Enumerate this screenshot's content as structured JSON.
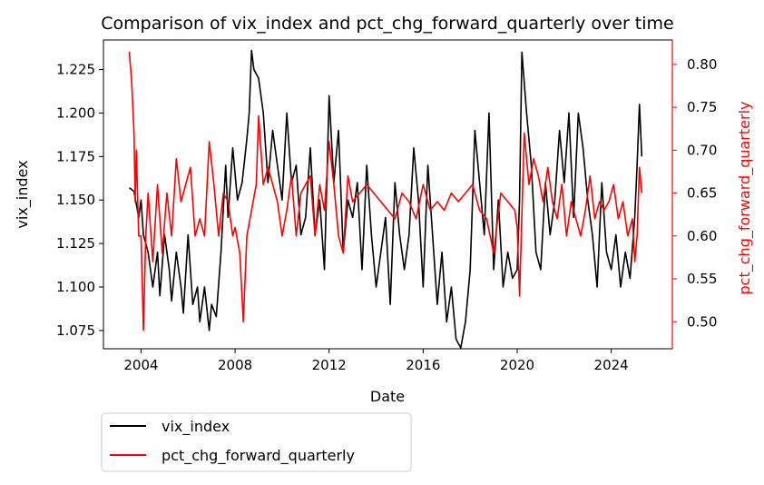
{
  "chart_data": {
    "type": "line",
    "title": "Comparison of vix_index and pct_chg_forward_quarterly over time",
    "xlabel": "Date",
    "ylabel_left": "vix_index",
    "ylabel_right": "pct_chg_forward_quarterly",
    "xlim": [
      2002.4,
      2026.6
    ],
    "ylim_left": [
      1.0645,
      1.242
    ],
    "ylim_right": [
      0.4685,
      0.8285
    ],
    "xticks": [
      2004,
      2008,
      2012,
      2016,
      2020,
      2024
    ],
    "yticks_left": [
      1.075,
      1.1,
      1.125,
      1.15,
      1.175,
      1.2,
      1.225
    ],
    "yticks_right": [
      0.5,
      0.55,
      0.6,
      0.65,
      0.7,
      0.75,
      0.8
    ],
    "grid": false,
    "legend_position": "below-left",
    "series": [
      {
        "name": "vix_index",
        "axis": "left",
        "color": "#000000",
        "x": [
          2003.5,
          2003.7,
          2003.9,
          2004.0,
          2004.1,
          2004.3,
          2004.5,
          2004.7,
          2004.8,
          2005.0,
          2005.2,
          2005.3,
          2005.5,
          2005.7,
          2005.8,
          2006.0,
          2006.2,
          2006.4,
          2006.5,
          2006.7,
          2006.9,
          2007.0,
          2007.2,
          2007.4,
          2007.6,
          2007.7,
          2007.9,
          2008.1,
          2008.3,
          2008.5,
          2008.6,
          2008.7,
          2008.8,
          2009.0,
          2009.2,
          2009.4,
          2009.6,
          2009.8,
          2010.0,
          2010.2,
          2010.4,
          2010.6,
          2010.8,
          2011.0,
          2011.2,
          2011.4,
          2011.6,
          2011.8,
          2012.0,
          2012.2,
          2012.4,
          2012.6,
          2012.8,
          2013.0,
          2013.2,
          2013.4,
          2013.6,
          2013.8,
          2014.0,
          2014.2,
          2014.4,
          2014.6,
          2014.8,
          2015.0,
          2015.2,
          2015.4,
          2015.6,
          2015.8,
          2016.0,
          2016.2,
          2016.4,
          2016.6,
          2016.8,
          2017.0,
          2017.2,
          2017.4,
          2017.6,
          2017.8,
          2018.0,
          2018.2,
          2018.4,
          2018.6,
          2018.8,
          2019.0,
          2019.2,
          2019.4,
          2019.6,
          2019.8,
          2020.0,
          2020.1,
          2020.2,
          2020.4,
          2020.6,
          2020.8,
          2021.0,
          2021.2,
          2021.4,
          2021.6,
          2021.8,
          2022.0,
          2022.2,
          2022.4,
          2022.6,
          2022.8,
          2023.0,
          2023.2,
          2023.4,
          2023.6,
          2023.8,
          2024.0,
          2024.2,
          2024.4,
          2024.6,
          2024.8,
          2025.0,
          2025.1,
          2025.2,
          2025.3
        ],
        "values": [
          1.157,
          1.155,
          1.14,
          1.15,
          1.13,
          1.12,
          1.1,
          1.12,
          1.095,
          1.13,
          1.11,
          1.092,
          1.12,
          1.1,
          1.085,
          1.13,
          1.09,
          1.1,
          1.08,
          1.1,
          1.075,
          1.09,
          1.083,
          1.12,
          1.17,
          1.14,
          1.18,
          1.15,
          1.16,
          1.185,
          1.2,
          1.236,
          1.225,
          1.22,
          1.2,
          1.16,
          1.19,
          1.17,
          1.15,
          1.2,
          1.16,
          1.17,
          1.13,
          1.14,
          1.18,
          1.13,
          1.15,
          1.11,
          1.21,
          1.16,
          1.19,
          1.12,
          1.15,
          1.14,
          1.16,
          1.11,
          1.17,
          1.13,
          1.1,
          1.12,
          1.14,
          1.09,
          1.16,
          1.13,
          1.11,
          1.13,
          1.18,
          1.15,
          1.1,
          1.17,
          1.13,
          1.09,
          1.12,
          1.08,
          1.1,
          1.07,
          1.065,
          1.08,
          1.11,
          1.19,
          1.16,
          1.13,
          1.2,
          1.11,
          1.15,
          1.1,
          1.12,
          1.105,
          1.11,
          1.15,
          1.235,
          1.2,
          1.17,
          1.12,
          1.11,
          1.16,
          1.13,
          1.15,
          1.19,
          1.16,
          1.2,
          1.14,
          1.2,
          1.18,
          1.15,
          1.13,
          1.1,
          1.16,
          1.12,
          1.11,
          1.13,
          1.1,
          1.12,
          1.105,
          1.14,
          1.17,
          1.205,
          1.175
        ]
      },
      {
        "name": "pct_chg_forward_quarterly",
        "axis": "right",
        "color": "#ff0000",
        "x": [
          2003.5,
          2003.6,
          2003.7,
          2003.75,
          2003.8,
          2003.9,
          2004.0,
          2004.1,
          2004.2,
          2004.3,
          2004.5,
          2004.7,
          2004.9,
          2005.1,
          2005.3,
          2005.5,
          2005.7,
          2005.9,
          2006.1,
          2006.3,
          2006.5,
          2006.7,
          2006.9,
          2007.1,
          2007.3,
          2007.5,
          2007.7,
          2007.9,
          2008.0,
          2008.2,
          2008.35,
          2008.5,
          2008.7,
          2008.9,
          2009.0,
          2009.2,
          2009.4,
          2009.6,
          2009.8,
          2010.0,
          2010.2,
          2010.4,
          2010.6,
          2010.8,
          2011.0,
          2011.2,
          2011.4,
          2011.6,
          2011.8,
          2012.0,
          2012.2,
          2012.4,
          2012.6,
          2012.8,
          2013.0,
          2013.3,
          2013.6,
          2013.9,
          2014.2,
          2014.5,
          2014.8,
          2015.1,
          2015.4,
          2015.7,
          2016.0,
          2016.3,
          2016.6,
          2016.9,
          2017.2,
          2017.5,
          2017.8,
          2018.1,
          2018.4,
          2018.7,
          2019.0,
          2019.3,
          2019.6,
          2019.9,
          2020.0,
          2020.1,
          2020.3,
          2020.5,
          2020.7,
          2020.9,
          2021.1,
          2021.3,
          2021.5,
          2021.7,
          2021.9,
          2022.1,
          2022.3,
          2022.5,
          2022.7,
          2022.9,
          2023.1,
          2023.3,
          2023.5,
          2023.7,
          2023.9,
          2024.1,
          2024.3,
          2024.5,
          2024.7,
          2024.9,
          2025.0,
          2025.1,
          2025.2,
          2025.3
        ],
        "values": [
          0.815,
          0.78,
          0.72,
          0.64,
          0.7,
          0.6,
          0.6,
          0.49,
          0.6,
          0.65,
          0.57,
          0.66,
          0.58,
          0.65,
          0.6,
          0.69,
          0.64,
          0.66,
          0.68,
          0.6,
          0.62,
          0.6,
          0.71,
          0.66,
          0.6,
          0.65,
          0.64,
          0.6,
          0.61,
          0.58,
          0.5,
          0.6,
          0.63,
          0.66,
          0.74,
          0.66,
          0.68,
          0.66,
          0.64,
          0.6,
          0.63,
          0.67,
          0.6,
          0.65,
          0.66,
          0.67,
          0.6,
          0.66,
          0.63,
          0.71,
          0.66,
          0.6,
          0.58,
          0.67,
          0.64,
          0.65,
          0.66,
          0.65,
          0.64,
          0.63,
          0.62,
          0.65,
          0.64,
          0.62,
          0.66,
          0.63,
          0.64,
          0.63,
          0.65,
          0.64,
          0.65,
          0.66,
          0.63,
          0.62,
          0.58,
          0.65,
          0.64,
          0.63,
          0.61,
          0.53,
          0.72,
          0.66,
          0.69,
          0.67,
          0.64,
          0.68,
          0.64,
          0.62,
          0.66,
          0.6,
          0.64,
          0.62,
          0.6,
          0.63,
          0.67,
          0.62,
          0.64,
          0.63,
          0.64,
          0.66,
          0.62,
          0.64,
          0.6,
          0.62,
          0.57,
          0.6,
          0.68,
          0.65
        ]
      }
    ]
  }
}
